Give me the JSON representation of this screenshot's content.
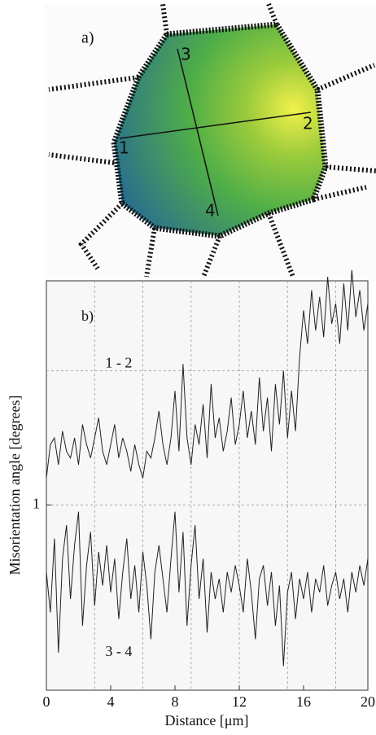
{
  "figure_a": {
    "label": "a)",
    "points": [
      "1",
      "2",
      "3",
      "4"
    ]
  },
  "chart_data": {
    "type": "line",
    "label": "b)",
    "xlabel": "Distance [μm]",
    "ylabel": "Misorientation angle [degrees]",
    "xlim": [
      0,
      20
    ],
    "xticks": [
      0,
      4,
      8,
      12,
      16,
      20
    ],
    "ylim": [
      -0.38,
      2.67
    ],
    "yticks": [
      1
    ],
    "xgrid": [
      3,
      6,
      9,
      12,
      15,
      18
    ],
    "ygrid": [
      1,
      2
    ],
    "x": [
      0,
      0.25,
      0.5,
      0.75,
      1,
      1.25,
      1.5,
      1.75,
      2,
      2.25,
      2.5,
      2.75,
      3,
      3.25,
      3.5,
      3.75,
      4,
      4.25,
      4.5,
      4.75,
      5,
      5.25,
      5.5,
      5.75,
      6,
      6.25,
      6.5,
      6.75,
      7,
      7.25,
      7.5,
      7.75,
      8,
      8.25,
      8.5,
      8.75,
      9,
      9.25,
      9.5,
      9.75,
      10,
      10.25,
      10.5,
      10.75,
      11,
      11.25,
      11.5,
      11.75,
      12,
      12.25,
      12.5,
      12.75,
      13,
      13.25,
      13.5,
      13.75,
      14,
      14.25,
      14.5,
      14.75,
      15,
      15.25,
      15.5,
      15.75,
      16,
      16.25,
      16.5,
      16.75,
      17,
      17.25,
      17.5,
      17.75,
      18,
      18.25,
      18.5,
      18.75,
      19,
      19.25,
      19.5,
      19.75,
      20
    ],
    "series": [
      {
        "name": "1 - 2",
        "color": "#222222",
        "values": [
          1.2,
          1.45,
          1.5,
          1.3,
          1.55,
          1.4,
          1.35,
          1.5,
          1.3,
          1.6,
          1.45,
          1.35,
          1.5,
          1.65,
          1.4,
          1.3,
          1.45,
          1.6,
          1.35,
          1.5,
          1.4,
          1.25,
          1.45,
          1.3,
          1.2,
          1.4,
          1.35,
          1.5,
          1.7,
          1.45,
          1.3,
          1.5,
          1.85,
          1.4,
          2.05,
          1.5,
          1.3,
          1.6,
          1.45,
          1.75,
          1.35,
          1.9,
          1.5,
          1.65,
          1.4,
          1.55,
          1.8,
          1.45,
          1.6,
          1.85,
          1.5,
          1.7,
          1.45,
          1.95,
          1.55,
          1.8,
          1.4,
          1.9,
          1.6,
          2.0,
          1.5,
          1.85,
          1.55,
          2.1,
          2.45,
          2.2,
          2.6,
          2.3,
          2.55,
          2.25,
          2.7,
          2.35,
          2.5,
          2.2,
          2.65,
          2.3,
          2.75,
          2.4,
          2.6,
          2.3,
          2.5
        ]
      },
      {
        "name": "3 - 4",
        "color": "#222222",
        "values": [
          0.5,
          0.2,
          0.75,
          -0.1,
          0.6,
          0.85,
          0.3,
          0.7,
          0.95,
          0.1,
          0.55,
          0.8,
          0.25,
          0.65,
          0.4,
          0.7,
          0.35,
          0.6,
          0.15,
          0.5,
          0.75,
          0.3,
          0.55,
          0.2,
          0.65,
          0.4,
          0.0,
          0.5,
          0.7,
          0.45,
          0.2,
          0.6,
          0.95,
          0.35,
          0.8,
          0.1,
          0.55,
          0.85,
          0.3,
          0.6,
          0.05,
          0.5,
          0.3,
          0.45,
          0.2,
          0.5,
          0.35,
          0.55,
          0.4,
          0.2,
          0.6,
          0.35,
          0.0,
          0.45,
          0.55,
          0.25,
          0.5,
          0.1,
          0.4,
          -0.2,
          0.35,
          0.5,
          0.15,
          0.45,
          0.3,
          0.5,
          0.2,
          0.45,
          0.35,
          0.55,
          0.25,
          0.4,
          0.5,
          0.3,
          0.45,
          0.2,
          0.5,
          0.35,
          0.55,
          0.4,
          0.6
        ]
      }
    ]
  }
}
